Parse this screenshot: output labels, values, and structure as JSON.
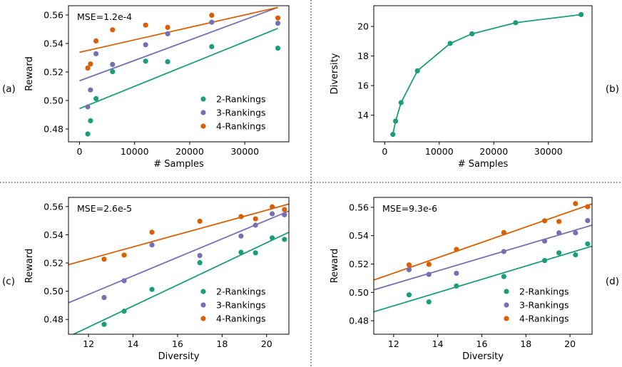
{
  "colors": {
    "2-Rankings": "#1b9e77",
    "3-Rankings": "#7570b3",
    "4-Rankings": "#d95f02",
    "single": "#1b9e77"
  },
  "chart_data": [
    {
      "panel_label": "(a)",
      "type": "scatter",
      "xlabel": "# Samples",
      "ylabel": "Reward",
      "annotation": "MSE=1.2e-4",
      "xlim": [
        -2000,
        38000
      ],
      "ylim": [
        0.471,
        0.5665
      ],
      "xticks": [
        0,
        10000,
        20000,
        30000
      ],
      "yticks": [
        0.48,
        0.5,
        0.52,
        0.54,
        0.56
      ],
      "legend_position": "lower right",
      "series": [
        {
          "name": "2-Rankings",
          "x": [
            1500,
            2000,
            3000,
            6000,
            12000,
            16000,
            24000,
            36000
          ],
          "y": [
            0.4765,
            0.4858,
            0.5013,
            0.5202,
            0.5276,
            0.5272,
            0.5378,
            0.5367
          ],
          "fit": [
            [
              0,
              0.4943
            ],
            [
              36000,
              0.5506
            ]
          ]
        },
        {
          "name": "3-Rankings",
          "x": [
            1500,
            2000,
            3000,
            6000,
            12000,
            16000,
            24000,
            36000
          ],
          "y": [
            0.4955,
            0.5074,
            0.5328,
            0.5253,
            0.5391,
            0.5468,
            0.5549,
            0.5542
          ],
          "fit": [
            [
              0,
              0.5138
            ],
            [
              36000,
              0.5653
            ]
          ]
        },
        {
          "name": "4-Rankings",
          "x": [
            1500,
            2000,
            3000,
            6000,
            12000,
            16000,
            24000,
            36000
          ],
          "y": [
            0.5227,
            0.5256,
            0.5418,
            0.5496,
            0.5529,
            0.5513,
            0.5598,
            0.5579
          ],
          "fit": [
            [
              0,
              0.5338
            ],
            [
              36000,
              0.5653
            ]
          ]
        }
      ]
    },
    {
      "panel_label": "(b)",
      "type": "line",
      "xlabel": "# Samples",
      "ylabel": "Diversity",
      "xlim": [
        -2000,
        38000
      ],
      "ylim": [
        12.2,
        21.4
      ],
      "xticks": [
        0,
        10000,
        20000,
        30000
      ],
      "yticks": [
        14,
        16,
        18,
        20
      ],
      "series": [
        {
          "name": "Diversity",
          "x": [
            1500,
            2000,
            3000,
            6000,
            12000,
            16000,
            24000,
            36000
          ],
          "y": [
            12.7,
            13.6,
            14.85,
            17.0,
            18.85,
            19.5,
            20.25,
            20.8
          ]
        }
      ]
    },
    {
      "panel_label": "(c)",
      "type": "scatter",
      "xlabel": "Diversity",
      "ylabel": "Reward",
      "annotation": "MSE=2.6e-5",
      "xlim": [
        11.1,
        21.0
      ],
      "ylim": [
        0.4695,
        0.5665
      ],
      "xticks": [
        12,
        14,
        16,
        18,
        20
      ],
      "yticks": [
        0.48,
        0.5,
        0.52,
        0.54,
        0.56
      ],
      "legend_position": "lower right",
      "series": [
        {
          "name": "2-Rankings",
          "x": [
            12.7,
            13.6,
            14.85,
            17.0,
            18.85,
            19.5,
            20.25,
            20.8
          ],
          "y": [
            0.4765,
            0.4858,
            0.5013,
            0.5202,
            0.5276,
            0.5272,
            0.5378,
            0.5367
          ],
          "fit": [
            [
              11.1,
              0.4678
            ],
            [
              21.0,
              0.5418
            ]
          ]
        },
        {
          "name": "3-Rankings",
          "x": [
            12.7,
            13.6,
            14.85,
            17.0,
            18.85,
            19.5,
            20.25,
            20.8
          ],
          "y": [
            0.4955,
            0.5074,
            0.5328,
            0.5253,
            0.5391,
            0.5468,
            0.5549,
            0.5542
          ],
          "fit": [
            [
              11.1,
              0.4918
            ],
            [
              21.0,
              0.5568
            ]
          ]
        },
        {
          "name": "4-Rankings",
          "x": [
            12.7,
            13.6,
            14.85,
            17.0,
            18.85,
            19.5,
            20.25,
            20.8
          ],
          "y": [
            0.5227,
            0.5256,
            0.5418,
            0.5496,
            0.5529,
            0.5513,
            0.5598,
            0.5579
          ],
          "fit": [
            [
              11.1,
              0.5188
            ],
            [
              21.0,
              0.5618
            ]
          ]
        }
      ]
    },
    {
      "panel_label": "(d)",
      "type": "scatter",
      "xlabel": "Diversity",
      "ylabel": "Reward",
      "annotation": "MSE=9.3e-6",
      "xlim": [
        11.1,
        21.0
      ],
      "ylim": [
        0.4705,
        0.567
      ],
      "xticks": [
        12,
        14,
        16,
        18,
        20
      ],
      "yticks": [
        0.48,
        0.5,
        0.52,
        0.54,
        0.56
      ],
      "legend_position": "lower right",
      "series": [
        {
          "name": "2-Rankings",
          "x": [
            12.7,
            13.6,
            14.85,
            17.0,
            18.85,
            19.5,
            20.25,
            20.8
          ],
          "y": [
            0.4983,
            0.4933,
            0.5045,
            0.5112,
            0.5225,
            0.5279,
            0.5265,
            0.5342
          ],
          "fit": [
            [
              11.1,
              0.4863
            ],
            [
              21.0,
              0.5326
            ]
          ]
        },
        {
          "name": "3-Rankings",
          "x": [
            12.7,
            13.6,
            14.85,
            17.0,
            18.85,
            19.5,
            20.25,
            20.8
          ],
          "y": [
            0.516,
            0.5127,
            0.5135,
            0.5288,
            0.5362,
            0.542,
            0.542,
            0.5506
          ],
          "fit": [
            [
              11.1,
              0.5018
            ],
            [
              21.0,
              0.5474
            ]
          ]
        },
        {
          "name": "4-Rankings",
          "x": [
            12.7,
            13.6,
            14.85,
            17.0,
            18.85,
            19.5,
            20.25,
            20.8
          ],
          "y": [
            0.5194,
            0.5198,
            0.5303,
            0.5422,
            0.5505,
            0.55,
            0.5626,
            0.5604
          ],
          "fit": [
            [
              11.1,
              0.5087
            ],
            [
              21.0,
              0.5624
            ]
          ]
        }
      ]
    }
  ]
}
